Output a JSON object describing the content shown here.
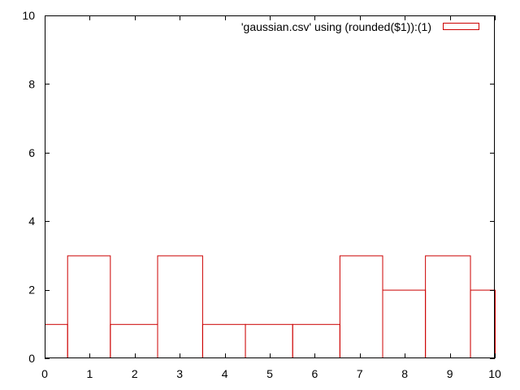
{
  "chart_data": {
    "type": "bar",
    "title": "",
    "xlabel": "",
    "ylabel": "",
    "xlim": [
      0,
      10
    ],
    "ylim": [
      0,
      10
    ],
    "grid": false,
    "legend_position": "top-right",
    "x_ticks": [
      0,
      1,
      2,
      3,
      4,
      5,
      6,
      7,
      8,
      9,
      10
    ],
    "y_ticks": [
      0,
      2,
      4,
      6,
      8,
      10
    ],
    "bar_style": "outline",
    "bar_color": "#cc0000",
    "series": [
      {
        "name": "'gaussian.csv' using (rounded($1)):(1)",
        "color": "#cc0000",
        "bins": [
          {
            "x0": 0.0,
            "x1": 0.5,
            "value": 1
          },
          {
            "x0": 0.5,
            "x1": 1.45,
            "value": 3
          },
          {
            "x0": 1.45,
            "x1": 2.5,
            "value": 1
          },
          {
            "x0": 2.5,
            "x1": 3.5,
            "value": 3
          },
          {
            "x0": 3.5,
            "x1": 4.45,
            "value": 1
          },
          {
            "x0": 4.45,
            "x1": 5.5,
            "value": 1
          },
          {
            "x0": 5.5,
            "x1": 6.55,
            "value": 1
          },
          {
            "x0": 6.55,
            "x1": 7.5,
            "value": 3
          },
          {
            "x0": 7.5,
            "x1": 8.45,
            "value": 2
          },
          {
            "x0": 8.45,
            "x1": 9.45,
            "value": 3
          },
          {
            "x0": 9.45,
            "x1": 10.0,
            "value": 2
          }
        ]
      }
    ]
  }
}
